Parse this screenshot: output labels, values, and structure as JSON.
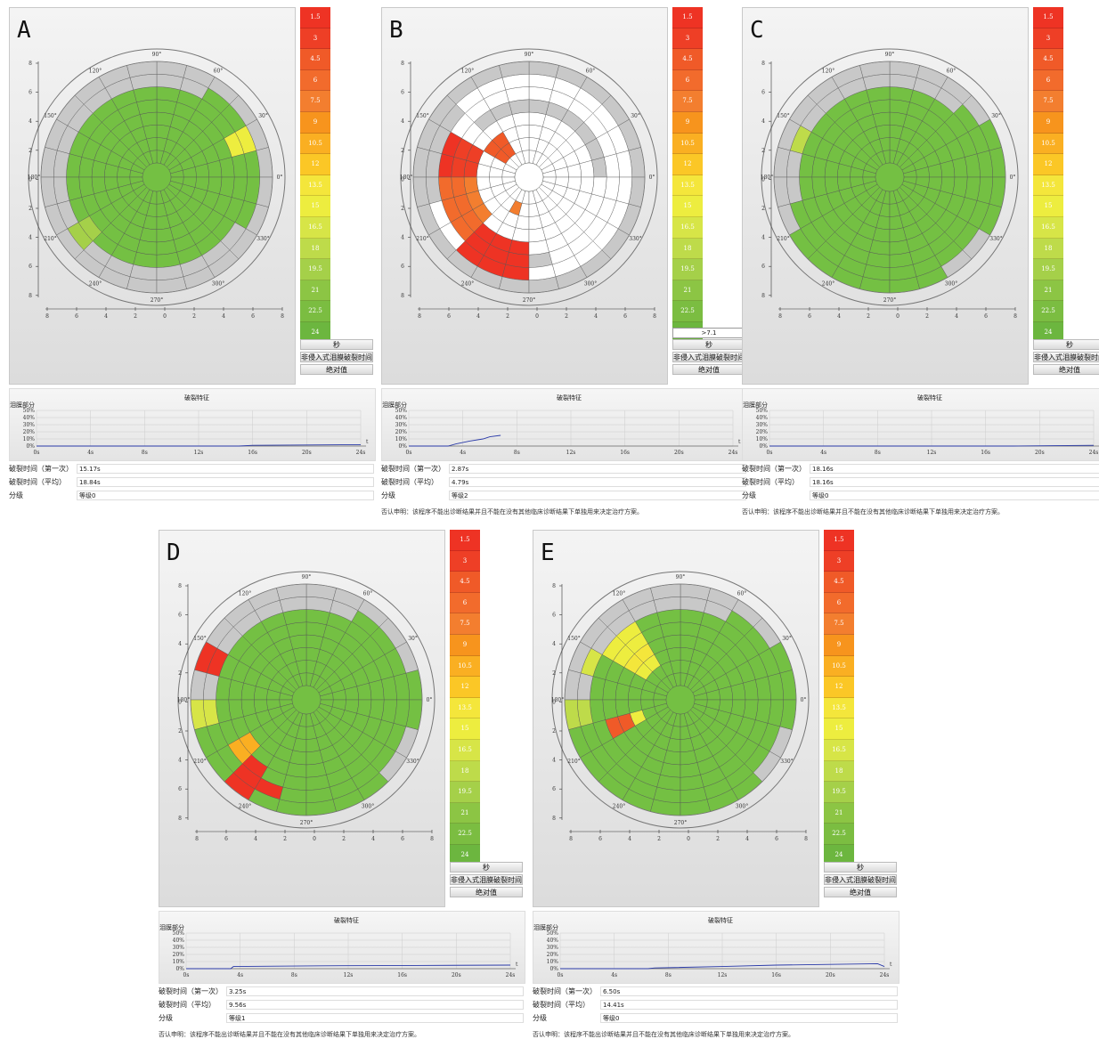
{
  "common": {
    "colorbar": [
      {
        "label": "1.5",
        "color": "#ee3324"
      },
      {
        "label": "3",
        "color": "#ee3f26"
      },
      {
        "label": "4.5",
        "color": "#f05a28"
      },
      {
        "label": "6",
        "color": "#f26b2c"
      },
      {
        "label": "7.5",
        "color": "#f37e2f"
      },
      {
        "label": "9",
        "color": "#f7941d"
      },
      {
        "label": "10.5",
        "color": "#faaf22"
      },
      {
        "label": "12",
        "color": "#fbc726"
      },
      {
        "label": "13.5",
        "color": "#f4e63b"
      },
      {
        "label": "15",
        "color": "#eded3f"
      },
      {
        "label": "16.5",
        "color": "#d7e547"
      },
      {
        "label": "18",
        "color": "#bedb4a"
      },
      {
        "label": "19.5",
        "color": "#a5d049"
      },
      {
        "label": "21",
        "color": "#8cc544"
      },
      {
        "label": "22.5",
        "color": "#7bbd41"
      },
      {
        "label": "24",
        "color": "#6cb63f"
      }
    ],
    "buttons": {
      "seconds": "秒",
      "mode": "非侵入式泪膜破裂时间",
      "absolute": "绝对值"
    },
    "chart_title": "破裂特征",
    "chart_ylabel": "泪膜部分",
    "y_ticks": [
      "50%",
      "40%",
      "30%",
      "20%",
      "10%",
      "0%"
    ],
    "x_ticks": [
      "0s",
      "4s",
      "8s",
      "12s",
      "16s",
      "20s",
      "24s"
    ],
    "x_axis_label": "t",
    "labels": {
      "first": "破裂时间（第一次）",
      "avg": "破裂时间（平均）",
      "grade": "分级"
    },
    "disclaimer": "否认申明：该程序不能出诊断结果并且不能在没有其他临床诊断结果下单独用来决定治疗方案。",
    "polar_axis_ticks": [
      "8",
      "6",
      "4",
      "2",
      "0",
      "2",
      "4",
      "6",
      "8"
    ],
    "angle_labels": [
      "90°",
      "60°",
      "30°",
      "0°",
      "330°",
      "300°",
      "270°",
      "240°",
      "210°",
      "180°",
      "150°",
      "120°"
    ],
    "colors": {
      "green": "#74c043",
      "gray": "#c8c8c8",
      "white": "#ffffff"
    }
  },
  "panels": [
    {
      "letter": "A",
      "first": "15.17s",
      "avg": "18.84s",
      "grade": "等级0",
      "show_extra": false,
      "extra": "",
      "curve": [
        [
          0,
          0
        ],
        [
          15,
          0
        ],
        [
          16,
          1
        ],
        [
          20,
          1.5
        ],
        [
          24,
          2
        ]
      ]
    },
    {
      "letter": "B",
      "first": "2.87s",
      "avg": "4.79s",
      "grade": "等级2",
      "show_extra": true,
      "extra": ">7.1",
      "curve": [
        [
          0,
          0
        ],
        [
          2.9,
          0
        ],
        [
          3.5,
          3
        ],
        [
          4.5,
          7
        ],
        [
          5.5,
          10
        ],
        [
          6,
          13
        ],
        [
          6.8,
          15
        ]
      ]
    },
    {
      "letter": "C",
      "first": "18.16s",
      "avg": "18.16s",
      "grade": "等级0",
      "show_extra": false,
      "extra": "",
      "curve": [
        [
          0,
          0
        ],
        [
          18,
          0
        ],
        [
          24,
          1
        ]
      ]
    },
    {
      "letter": "D",
      "first": "3.25s",
      "avg": "9.56s",
      "grade": "等级1",
      "show_extra": false,
      "extra": "",
      "curve": [
        [
          0,
          0
        ],
        [
          3.3,
          0
        ],
        [
          3.5,
          3
        ],
        [
          10,
          4
        ],
        [
          17,
          4.5
        ],
        [
          24,
          5
        ]
      ]
    },
    {
      "letter": "E",
      "first": "6.50s",
      "avg": "14.41s",
      "grade": "等级0",
      "show_extra": false,
      "extra": "",
      "curve": [
        [
          0,
          0
        ],
        [
          6.5,
          0
        ],
        [
          7,
          1
        ],
        [
          12,
          3
        ],
        [
          16,
          5
        ],
        [
          20,
          6
        ],
        [
          23.5,
          7
        ],
        [
          24,
          3
        ]
      ]
    }
  ]
}
